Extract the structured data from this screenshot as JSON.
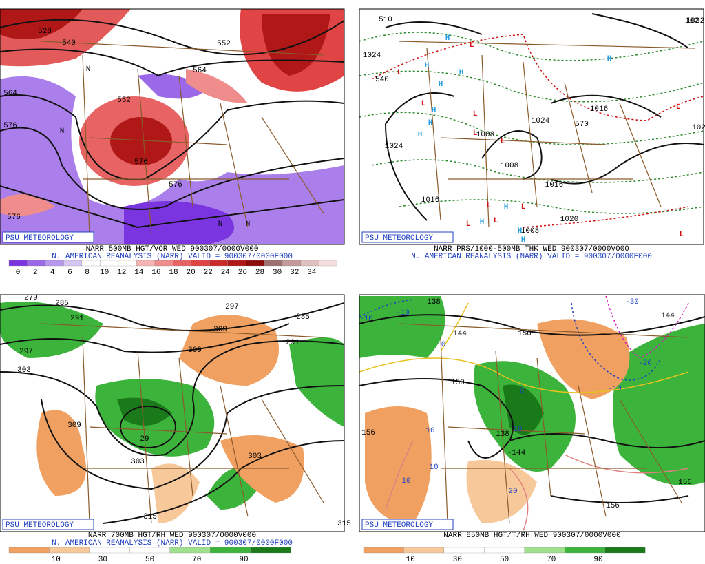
{
  "panels": [
    {
      "logo": "PSU METEOROLOGY",
      "caption": "NARR 500MB HGT/VOR WED 900307/0000V000",
      "subcaption": "N. AMERICAN REANALYSIS (NARR) VALID = 900307/0000F000",
      "colorbar": {
        "ticks": [
          0,
          2,
          4,
          6,
          8,
          10,
          12,
          14,
          16,
          18,
          20,
          22,
          24,
          26,
          28,
          30,
          32,
          34
        ],
        "colors": [
          "#7a35e0",
          "#9b68e8",
          "#b898ef",
          "#d6c6f6",
          "#ffffff",
          "#ffffff",
          "#ffffff",
          "#f6b4b4",
          "#ef8c8c",
          "#e86464",
          "#e04444",
          "#cc2a2a",
          "#b01818",
          "#8c0c0c",
          "#a07070",
          "#c49a9a",
          "#e0c0c0",
          "#f4dede"
        ]
      },
      "labels": [
        "528",
        "540",
        "552",
        "552",
        "564",
        "564",
        "576",
        "576",
        "576",
        "576",
        "N",
        "N",
        "N",
        "N"
      ]
    },
    {
      "logo": "PSU METEOROLOGY",
      "caption": "NARR PRS/1000-500MB THK WED 900307/0000V000",
      "subcaption": "N. AMERICAN REANALYSIS (NARR) VALID = 900307/0000F000",
      "labels": [
        "510",
        "1024",
        "540",
        "1024",
        "1008",
        "1024",
        "1008",
        "1016",
        "1016",
        "1008",
        "1016",
        "570",
        "1020",
        "1032",
        "102",
        "102",
        "H",
        "H",
        "H",
        "H",
        "H",
        "H",
        "H",
        "H",
        "H",
        "H",
        "H",
        "H",
        "L",
        "L",
        "L",
        "L",
        "L",
        "L",
        "L",
        "L",
        "L",
        "L",
        "L",
        "L"
      ]
    },
    {
      "logo": "PSU METEOROLOGY",
      "caption": "NARR 700MB HGT/RH WED 900307/0000V000",
      "subcaption": "N. AMERICAN REANALYSIS (NARR) VALID = 900307/0000F000",
      "colorbar": {
        "ticks": [
          10,
          30,
          50,
          70,
          90
        ],
        "colors": [
          "#f0a060",
          "#f7c89a",
          "#ffffff",
          "#ffffff",
          "#9ee08e",
          "#3cb43c",
          "#1a7a1a"
        ]
      },
      "labels": [
        "279",
        "285",
        "291",
        "297",
        "303",
        "309",
        "309",
        "303",
        "297",
        "285",
        "291",
        "309",
        "29",
        "303",
        "315",
        "315"
      ]
    },
    {
      "logo": "PSU METEOROLOGY",
      "caption": "NARR 850MB HGT/T/RH WED 900307/0000V000",
      "colorbar": {
        "ticks": [
          10,
          30,
          50,
          70,
          90
        ],
        "colors": [
          "#f0a060",
          "#f7c89a",
          "#ffffff",
          "#ffffff",
          "#9ee08e",
          "#3cb43c",
          "#1a7a1a"
        ]
      },
      "labels": [
        "-10",
        "-10",
        "138",
        "144",
        "150",
        "-30",
        "-20",
        "-10",
        "0",
        "0",
        "150",
        "156",
        "138",
        "10",
        "-144",
        "10",
        "10",
        "10",
        "20",
        "156",
        "156",
        "144"
      ]
    }
  ]
}
